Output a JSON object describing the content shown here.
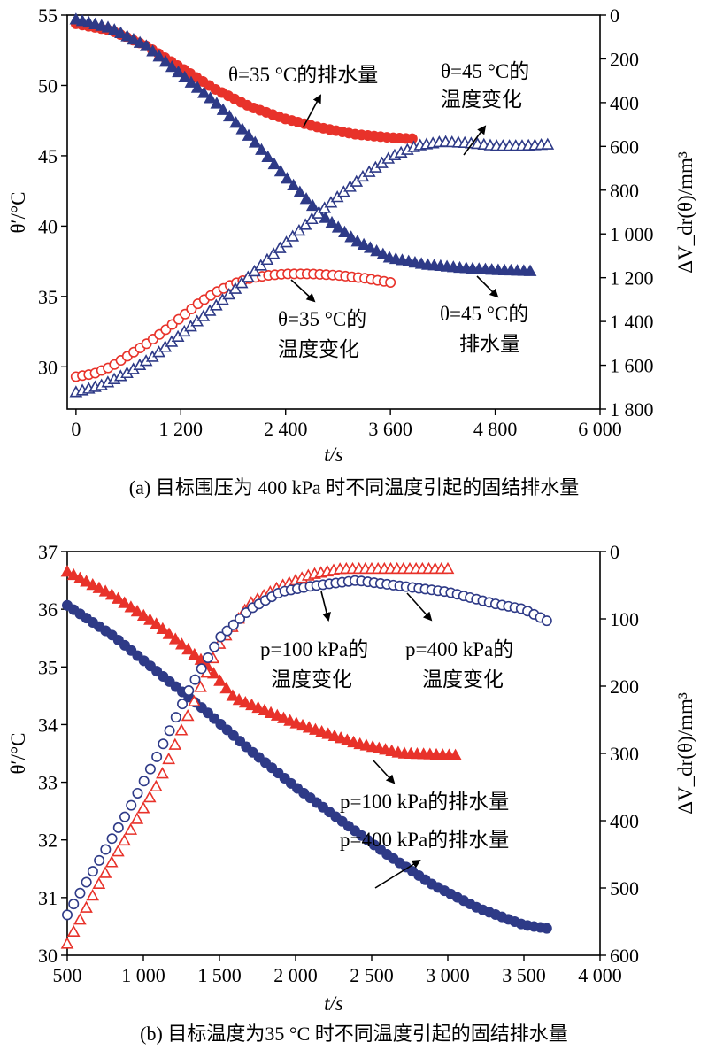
{
  "chart_data": [
    {
      "id": "a",
      "type": "scatter",
      "caption": "(a) 目标围压为 400 kPa 时不同温度引起的固结排水量",
      "xlabel": "t/s",
      "ylabel_left": "θ′/°C",
      "ylabel_right": "ΔV_dr(θ)/mm³",
      "xlim": [
        -100,
        6000
      ],
      "xticks": [
        0,
        1200,
        2400,
        3600,
        4800,
        6000
      ],
      "xtick_labels": [
        "0",
        "1 200",
        "2 400",
        "3 600",
        "4 800",
        "6 000"
      ],
      "ylim_left": [
        27,
        55
      ],
      "yticks_left": [
        30,
        35,
        40,
        45,
        50,
        55
      ],
      "ytick_labels_left": [
        "30",
        "35",
        "40",
        "45",
        "50",
        "55"
      ],
      "ylim_right": [
        1800,
        0
      ],
      "yticks_right": [
        0,
        200,
        400,
        600,
        800,
        1000,
        1200,
        1400,
        1600,
        1800
      ],
      "ytick_labels_right": [
        "0",
        "200",
        "400",
        "600",
        "800",
        "1 000",
        "1 200",
        "1 400",
        "1 600",
        "1 800"
      ],
      "series": [
        {
          "axis": "right",
          "color": "#e8322a",
          "marker": "circle",
          "filled": true,
          "x": [
            0,
            400,
            800,
            1200,
            1600,
            2000,
            2400,
            2800,
            3200,
            3600,
            3850
          ],
          "y": [
            40,
            70,
            140,
            240,
            340,
            420,
            475,
            515,
            545,
            560,
            565
          ]
        },
        {
          "axis": "right",
          "color": "#2e3a87",
          "marker": "triangle-up",
          "filled": true,
          "x": [
            0,
            400,
            800,
            1200,
            1600,
            2000,
            2400,
            2800,
            3200,
            3600,
            4000,
            4400,
            4800,
            5200
          ],
          "y": [
            20,
            60,
            140,
            270,
            400,
            560,
            740,
            910,
            1030,
            1110,
            1140,
            1155,
            1165,
            1170
          ]
        },
        {
          "axis": "left",
          "color": "#e8322a",
          "marker": "circle",
          "filled": false,
          "x": [
            0,
            200,
            400,
            600,
            800,
            1000,
            1200,
            1400,
            1600,
            1800,
            2000,
            2200,
            2400,
            2700,
            3000,
            3300,
            3600
          ],
          "y": [
            29.3,
            29.5,
            30.0,
            30.8,
            31.6,
            32.5,
            33.5,
            34.5,
            35.3,
            35.9,
            36.3,
            36.5,
            36.6,
            36.6,
            36.5,
            36.3,
            36.0
          ]
        },
        {
          "axis": "left",
          "color": "#2e3a87",
          "marker": "triangle-up",
          "filled": false,
          "x": [
            0,
            300,
            600,
            900,
            1200,
            1500,
            1800,
            2100,
            2400,
            2700,
            3000,
            3300,
            3600,
            3900,
            4200,
            4500,
            4800,
            5100,
            5400
          ],
          "y": [
            28.2,
            28.7,
            29.6,
            30.8,
            32.3,
            33.8,
            35.4,
            37.1,
            38.8,
            40.5,
            42.1,
            43.6,
            44.9,
            45.7,
            46.0,
            45.9,
            45.7,
            45.7,
            45.8
          ]
        }
      ],
      "annotations": [
        {
          "text": "θ=35 °C的排水量"
        },
        {
          "lines": [
            "θ=45 °C的",
            "温度变化"
          ]
        },
        {
          "lines": [
            "θ=35 °C的",
            "温度变化"
          ]
        },
        {
          "lines": [
            "θ=45 °C的",
            "排水量"
          ]
        }
      ]
    },
    {
      "id": "b",
      "type": "scatter",
      "caption": "(b) 目标温度为35 °C 时不同温度引起的固结排水量",
      "xlabel": "t/s",
      "ylabel_left": "θ′/°C",
      "ylabel_right": "ΔV_dr(θ)/mm³",
      "xlim": [
        500,
        4000
      ],
      "xticks": [
        500,
        1000,
        1500,
        2000,
        2500,
        3000,
        3500,
        4000
      ],
      "xtick_labels": [
        "500",
        "1 000",
        "1 500",
        "2 000",
        "2 500",
        "3 000",
        "3 500",
        "4 000"
      ],
      "ylim_left": [
        30,
        37
      ],
      "yticks_left": [
        30,
        31,
        32,
        33,
        34,
        35,
        36,
        37
      ],
      "ytick_labels_left": [
        "30",
        "31",
        "32",
        "33",
        "34",
        "35",
        "36",
        "37"
      ],
      "ylim_right": [
        600,
        0
      ],
      "yticks_right": [
        0,
        100,
        200,
        300,
        400,
        500,
        600
      ],
      "ytick_labels_right": [
        "0",
        "100",
        "200",
        "300",
        "400",
        "500",
        "600"
      ],
      "series": [
        {
          "axis": "right",
          "color": "#e8322a",
          "marker": "triangle-up",
          "filled": true,
          "x": [
            500,
            800,
            1100,
            1400,
            1600,
            2000,
            2400,
            2700,
            3050
          ],
          "y": [
            30,
            65,
            110,
            165,
            218,
            255,
            285,
            300,
            303
          ]
        },
        {
          "axis": "right",
          "color": "#2e3a87",
          "marker": "circle",
          "filled": true,
          "x": [
            500,
            800,
            1100,
            1400,
            1700,
            2000,
            2300,
            2600,
            2900,
            3200,
            3500,
            3650
          ],
          "y": [
            80,
            125,
            180,
            235,
            295,
            350,
            400,
            450,
            495,
            530,
            555,
            560
          ]
        },
        {
          "axis": "left",
          "color": "#e8322a",
          "marker": "triangle-up",
          "filled": false,
          "x": [
            500,
            700,
            900,
            1100,
            1300,
            1500,
            1700,
            1900,
            2100,
            2300,
            2500,
            2700,
            3000
          ],
          "y": [
            30.2,
            31.2,
            32.1,
            33.0,
            34.2,
            35.4,
            36.1,
            36.4,
            36.6,
            36.7,
            36.7,
            36.7,
            36.7
          ]
        },
        {
          "axis": "left",
          "color": "#2e3a87",
          "marker": "circle",
          "filled": false,
          "x": [
            500,
            700,
            900,
            1100,
            1300,
            1500,
            1700,
            1900,
            2100,
            2400,
            2700,
            3000,
            3300,
            3500,
            3650
          ],
          "y": [
            30.7,
            31.6,
            32.5,
            33.5,
            34.6,
            35.5,
            36.0,
            36.3,
            36.4,
            36.5,
            36.4,
            36.3,
            36.1,
            36.0,
            35.8
          ]
        }
      ],
      "annotations": [
        {
          "lines": [
            "p=100 kPa的",
            "温度变化"
          ]
        },
        {
          "lines": [
            "p=400 kPa的",
            "温度变化"
          ]
        },
        {
          "text": "p=100 kPa的排水量"
        },
        {
          "text": "p=400 kPa的排水量"
        }
      ]
    }
  ]
}
